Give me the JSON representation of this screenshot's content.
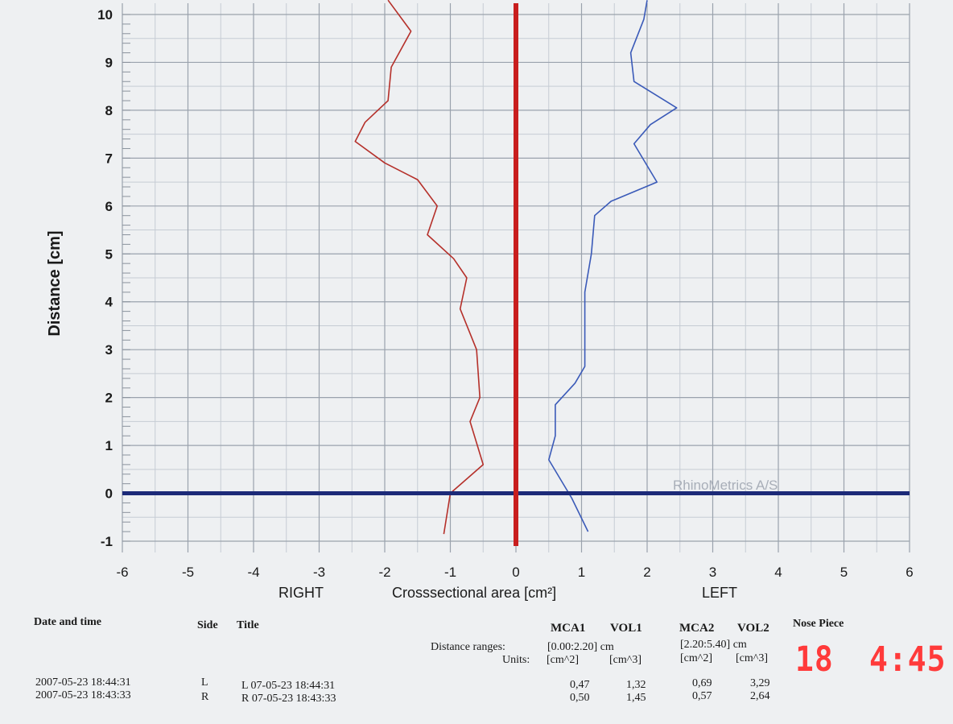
{
  "chart_data": {
    "type": "line",
    "title": "",
    "xlabel": "Crosssectional area [cm²]",
    "ylabel": "Distance [cm]",
    "side_labels": {
      "right": "RIGHT",
      "left": "LEFT"
    },
    "xlim": [
      -6,
      6
    ],
    "ylim": [
      -1,
      10
    ],
    "x_ticks": [
      "-6",
      "-5",
      "-4",
      "-3",
      "-2",
      "-1",
      "0",
      "1",
      "2",
      "3",
      "4",
      "5",
      "6"
    ],
    "y_ticks": [
      "-1",
      "0",
      "1",
      "2",
      "3",
      "4",
      "5",
      "6",
      "7",
      "8",
      "9",
      "10"
    ],
    "grid": true,
    "watermark": "RhinoMetrics A/S",
    "series": [
      {
        "side": "R",
        "color": "#b5302a",
        "points": [
          [
            -1.1,
            -0.85
          ],
          [
            -1.0,
            0.0
          ],
          [
            -0.5,
            0.6
          ],
          [
            -0.7,
            1.5
          ],
          [
            -0.55,
            2.0
          ],
          [
            -0.6,
            3.0
          ],
          [
            -0.85,
            3.85
          ],
          [
            -0.75,
            4.5
          ],
          [
            -0.95,
            4.9
          ],
          [
            -1.35,
            5.4
          ],
          [
            -1.2,
            6.0
          ],
          [
            -1.5,
            6.55
          ],
          [
            -2.0,
            6.9
          ],
          [
            -2.45,
            7.35
          ],
          [
            -2.3,
            7.75
          ],
          [
            -1.95,
            8.2
          ],
          [
            -1.9,
            8.9
          ],
          [
            -1.6,
            9.65
          ],
          [
            -1.95,
            10.3
          ]
        ]
      },
      {
        "side": "L",
        "color": "#3a5ab8",
        "points": [
          [
            1.1,
            -0.8
          ],
          [
            0.85,
            -0.1
          ],
          [
            0.5,
            0.7
          ],
          [
            0.6,
            1.2
          ],
          [
            0.6,
            1.85
          ],
          [
            0.9,
            2.3
          ],
          [
            1.05,
            2.65
          ],
          [
            1.05,
            3.5
          ],
          [
            1.05,
            4.2
          ],
          [
            1.15,
            5.0
          ],
          [
            1.2,
            5.8
          ],
          [
            1.45,
            6.1
          ],
          [
            2.15,
            6.5
          ],
          [
            1.8,
            7.3
          ],
          [
            2.05,
            7.7
          ],
          [
            2.45,
            8.05
          ],
          [
            1.8,
            8.6
          ],
          [
            1.75,
            9.2
          ],
          [
            1.95,
            9.9
          ],
          [
            2.0,
            10.3
          ]
        ]
      }
    ]
  },
  "table": {
    "headers": {
      "date": "Date and time",
      "side": "Side",
      "title": "Title",
      "mca1": "MCA1",
      "vol1": "VOL1",
      "mca2": "MCA2",
      "vol2": "VOL2",
      "nose": "Nose Piece"
    },
    "distance_label": "Distance ranges:",
    "range1": "[0.00:2.20] cm",
    "range2": "[2.20:5.40] cm",
    "units_label": "Units:",
    "units": [
      "[cm^2]",
      "[cm^3]",
      "[cm^2]",
      "[cm^3]"
    ],
    "nose_values": [
      "18",
      "4:45"
    ],
    "rows": [
      {
        "date": "2007-05-23 18:44:31",
        "side": "L",
        "title": "L 07-05-23 18:44:31",
        "mca1": "0,47",
        "vol1": "1,32",
        "mca2": "0,69",
        "vol2": "3,29"
      },
      {
        "date": "2007-05-23 18:43:33",
        "side": "R",
        "title": "R 07-05-23 18:43:33",
        "mca1": "0,50",
        "vol1": "1,45",
        "mca2": "0,57",
        "vol2": "2,64"
      }
    ]
  }
}
